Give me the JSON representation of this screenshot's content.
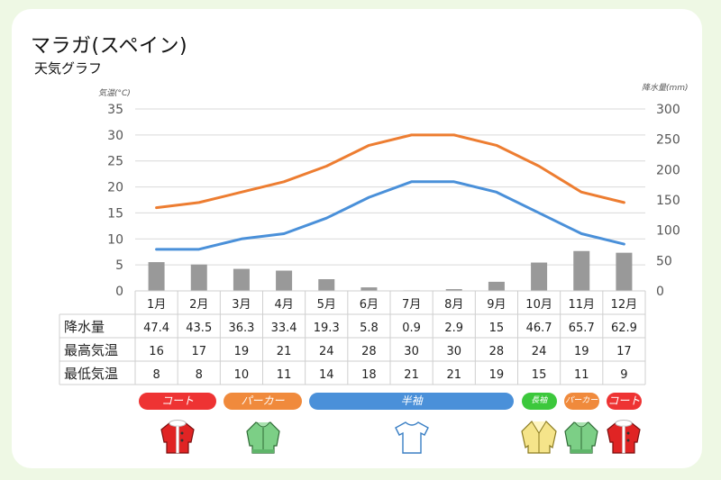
{
  "title": "マラガ(スペイン)",
  "subtitle": "天気グラフ",
  "left_unit": "気温(°C)",
  "right_unit": "降水量(mm)",
  "chart_data": {
    "type": "bar+line",
    "categories": [
      "1月",
      "2月",
      "3月",
      "4月",
      "5月",
      "6月",
      "7月",
      "8月",
      "9月",
      "10月",
      "11月",
      "12月"
    ],
    "left_ticks": [
      "0",
      "5",
      "10",
      "15",
      "20",
      "25",
      "30",
      "35"
    ],
    "right_ticks": [
      "0",
      "50",
      "100",
      "150",
      "200",
      "250",
      "300"
    ],
    "ylim_left": [
      0,
      35
    ],
    "ylim_right": [
      0,
      300
    ],
    "series": [
      {
        "name": "降水量",
        "axis": "right",
        "kind": "bar",
        "color": "#999999",
        "values": [
          47.4,
          43.5,
          36.3,
          33.4,
          19.3,
          5.8,
          0.9,
          2.9,
          15,
          46.7,
          65.7,
          62.9
        ]
      },
      {
        "name": "最高気温",
        "axis": "left",
        "kind": "line",
        "color": "#ed7d31",
        "values": [
          16,
          17,
          19,
          21,
          24,
          28,
          30,
          30,
          28,
          24,
          19,
          17
        ]
      },
      {
        "name": "最低気温",
        "axis": "left",
        "kind": "line",
        "color": "#4a90d9",
        "values": [
          8,
          8,
          10,
          11,
          14,
          18,
          21,
          21,
          19,
          15,
          11,
          9
        ]
      }
    ],
    "grid": true
  },
  "table": {
    "rows": [
      {
        "label": "降水量",
        "values": [
          "47.4",
          "43.5",
          "36.3",
          "33.4",
          "19.3",
          "5.8",
          "0.9",
          "2.9",
          "15",
          "46.7",
          "65.7",
          "62.9"
        ]
      },
      {
        "label": "最高気温",
        "values": [
          "16",
          "17",
          "19",
          "21",
          "24",
          "28",
          "30",
          "30",
          "28",
          "24",
          "19",
          "17"
        ]
      },
      {
        "label": "最低気温",
        "values": [
          "8",
          "8",
          "10",
          "11",
          "14",
          "18",
          "21",
          "21",
          "19",
          "15",
          "11",
          "9"
        ]
      }
    ]
  },
  "clothing": [
    {
      "label": "コート",
      "color": "#ee3333",
      "icon": "coat-icon",
      "from": 0,
      "to": 1
    },
    {
      "label": "パーカー",
      "color": "#f08a3c",
      "icon": "hoodie-icon",
      "from": 2,
      "to": 3
    },
    {
      "label": "半袖",
      "color": "#4a90d9",
      "icon": "tshirt-icon",
      "from": 4,
      "to": 8
    },
    {
      "label": "長袖",
      "color": "#3cc83c",
      "icon": "jacket-icon",
      "from": 9,
      "to": 9
    },
    {
      "label": "パーカー",
      "color": "#f08a3c",
      "icon": "hoodie-icon",
      "from": 10,
      "to": 10
    },
    {
      "label": "コート",
      "color": "#ee3333",
      "icon": "coat-icon",
      "from": 11,
      "to": 11
    }
  ]
}
